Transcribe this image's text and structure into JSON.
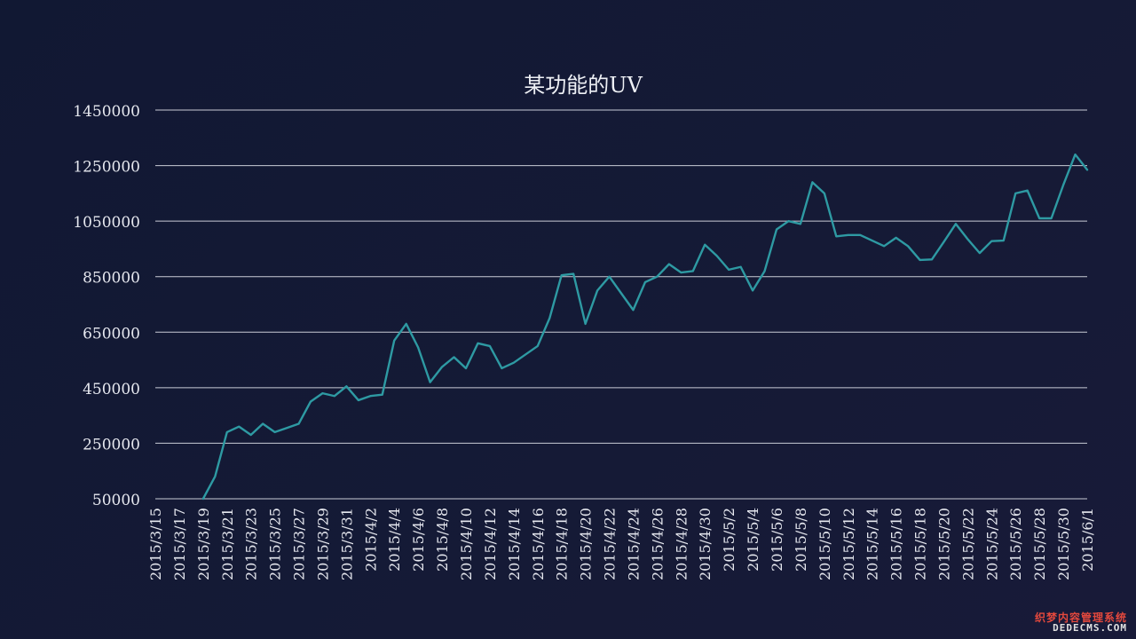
{
  "chart_data": {
    "type": "line",
    "title": "某功能的UV",
    "xlabel": "",
    "ylabel": "",
    "ylim": [
      50000,
      1450000
    ],
    "yticks": [
      50000,
      250000,
      450000,
      650000,
      850000,
      1050000,
      1250000,
      1450000
    ],
    "grid": true,
    "legend": "none",
    "line_color": "#2e9aa3",
    "x": [
      "2015/3/15",
      "2015/3/16",
      "2015/3/17",
      "2015/3/18",
      "2015/3/19",
      "2015/3/20",
      "2015/3/21",
      "2015/3/22",
      "2015/3/23",
      "2015/3/24",
      "2015/3/25",
      "2015/3/26",
      "2015/3/27",
      "2015/3/28",
      "2015/3/29",
      "2015/3/30",
      "2015/3/31",
      "2015/4/1",
      "2015/4/2",
      "2015/4/3",
      "2015/4/4",
      "2015/4/5",
      "2015/4/6",
      "2015/4/7",
      "2015/4/8",
      "2015/4/9",
      "2015/4/10",
      "2015/4/11",
      "2015/4/12",
      "2015/4/13",
      "2015/4/14",
      "2015/4/15",
      "2015/4/16",
      "2015/4/17",
      "2015/4/18",
      "2015/4/19",
      "2015/4/20",
      "2015/4/21",
      "2015/4/22",
      "2015/4/23",
      "2015/4/24",
      "2015/4/25",
      "2015/4/26",
      "2015/4/27",
      "2015/4/28",
      "2015/4/29",
      "2015/4/30",
      "2015/5/1",
      "2015/5/2",
      "2015/5/3",
      "2015/5/4",
      "2015/5/5",
      "2015/5/6",
      "2015/5/7",
      "2015/5/8",
      "2015/5/9",
      "2015/5/10",
      "2015/5/11",
      "2015/5/12",
      "2015/5/13",
      "2015/5/14",
      "2015/5/15",
      "2015/5/16",
      "2015/5/17",
      "2015/5/18",
      "2015/5/19",
      "2015/5/20",
      "2015/5/21",
      "2015/5/22",
      "2015/5/23",
      "2015/5/24",
      "2015/5/25",
      "2015/5/26",
      "2015/5/27",
      "2015/5/28",
      "2015/5/29",
      "2015/5/30",
      "2015/5/31",
      "2015/6/1"
    ],
    "x_tick_labels": [
      "2015/3/15",
      "2015/3/17",
      "2015/3/19",
      "2015/3/21",
      "2015/3/23",
      "2015/3/25",
      "2015/3/27",
      "2015/3/29",
      "2015/3/31",
      "2015/4/2",
      "2015/4/4",
      "2015/4/6",
      "2015/4/8",
      "2015/4/10",
      "2015/4/12",
      "2015/4/14",
      "2015/4/16",
      "2015/4/18",
      "2015/4/20",
      "2015/4/22",
      "2015/4/24",
      "2015/4/26",
      "2015/4/28",
      "2015/4/30",
      "2015/5/2",
      "2015/5/4",
      "2015/5/6",
      "2015/5/8",
      "2015/5/10",
      "2015/5/12",
      "2015/5/14",
      "2015/5/16",
      "2015/5/18",
      "2015/5/20",
      "2015/5/22",
      "2015/5/24",
      "2015/5/26",
      "2015/5/28",
      "2015/5/30",
      "2015/6/1"
    ],
    "series": [
      {
        "values": [
          null,
          null,
          null,
          null,
          50000,
          130000,
          290000,
          310000,
          280000,
          320000,
          290000,
          305000,
          320000,
          400000,
          430000,
          420000,
          455000,
          405000,
          420000,
          425000,
          620000,
          680000,
          595000,
          470000,
          525000,
          560000,
          520000,
          610000,
          600000,
          520000,
          540000,
          570000,
          600000,
          700000,
          855000,
          860000,
          680000,
          800000,
          850000,
          790000,
          730000,
          830000,
          850000,
          895000,
          865000,
          870000,
          965000,
          925000,
          875000,
          885000,
          800000,
          870000,
          1020000,
          1050000,
          1040000,
          1190000,
          1150000,
          995000,
          1000000,
          1000000,
          980000,
          960000,
          990000,
          960000,
          910000,
          912000,
          975000,
          1040000,
          985000,
          935000,
          978000,
          980000,
          1150000,
          1160000,
          1060000,
          1060000,
          1180000,
          1290000,
          1235000
        ]
      }
    ]
  },
  "watermark": {
    "line1": "织梦内容管理系统",
    "line2": "DEDECMS.COM"
  }
}
